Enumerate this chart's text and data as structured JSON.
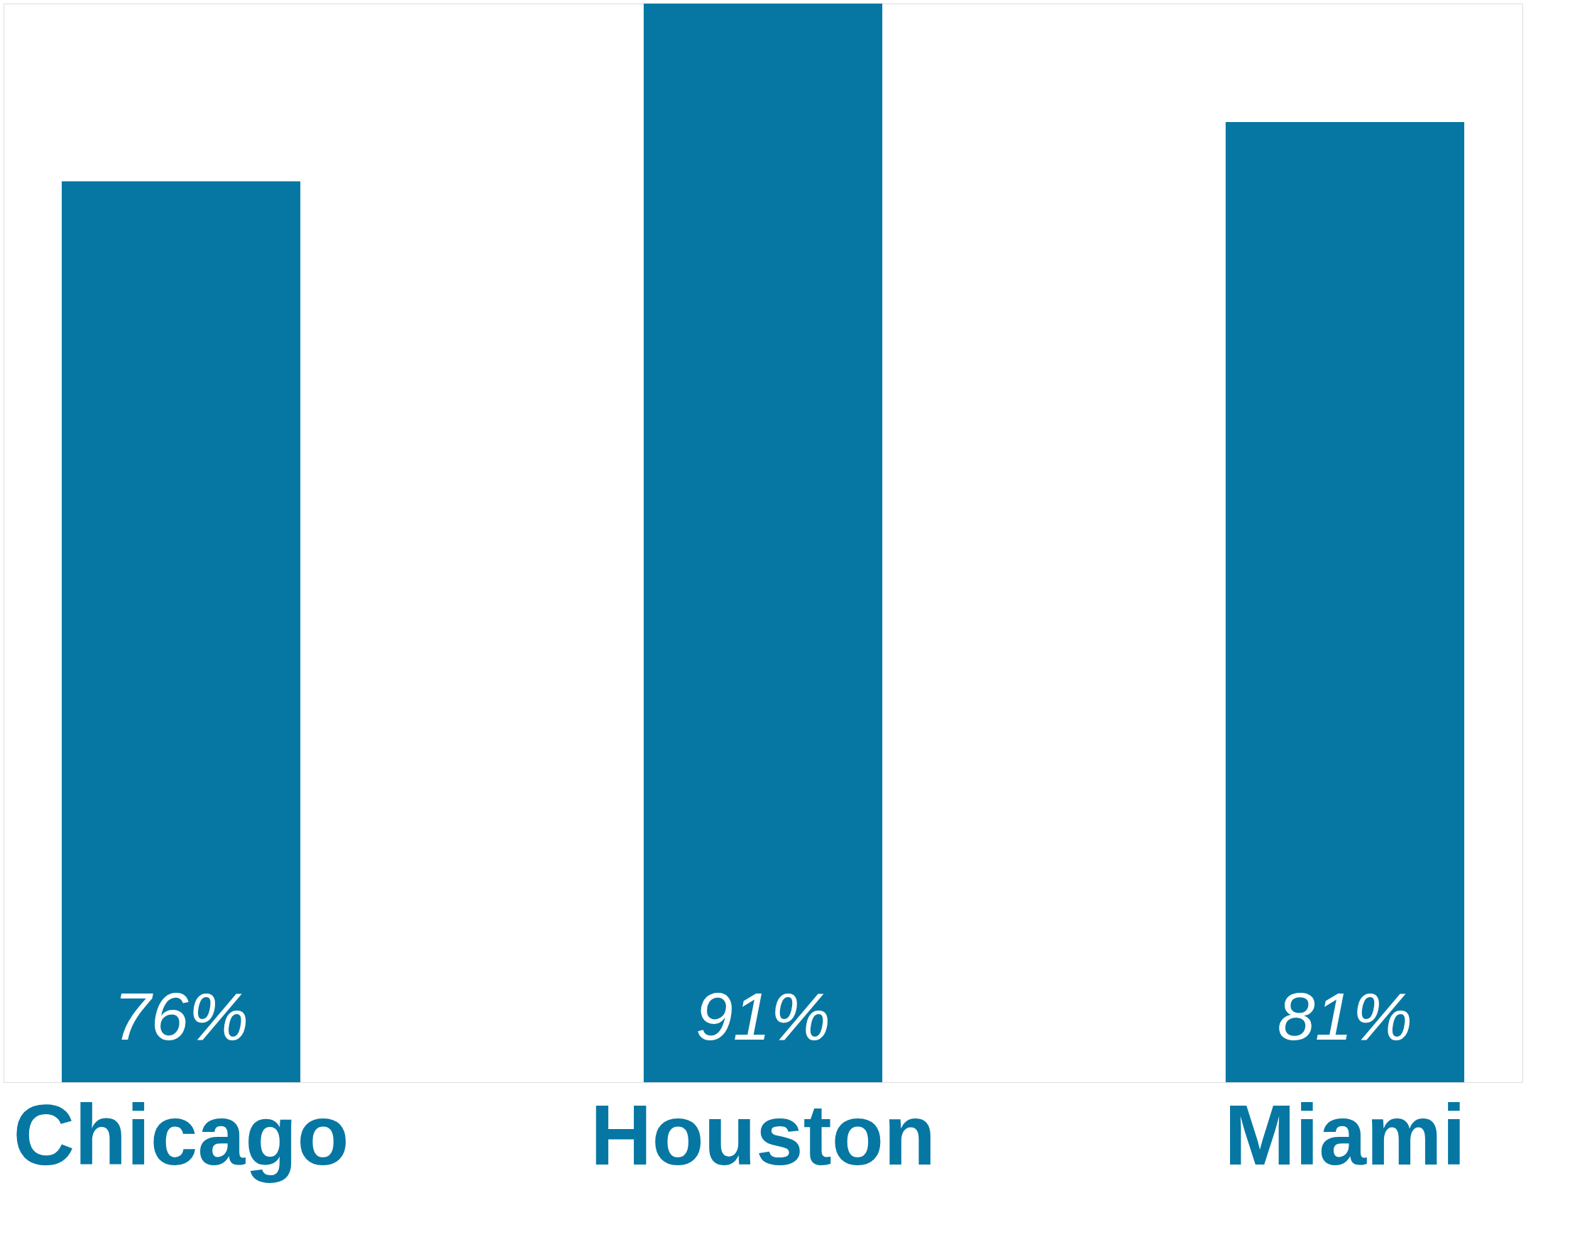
{
  "chart_data": {
    "type": "bar",
    "categories": [
      "Chicago",
      "Houston",
      "Miami"
    ],
    "values": [
      76,
      91,
      81
    ],
    "color": "#0677a3",
    "value_labels": [
      "76%",
      "91%",
      "81%"
    ],
    "grid": false
  }
}
